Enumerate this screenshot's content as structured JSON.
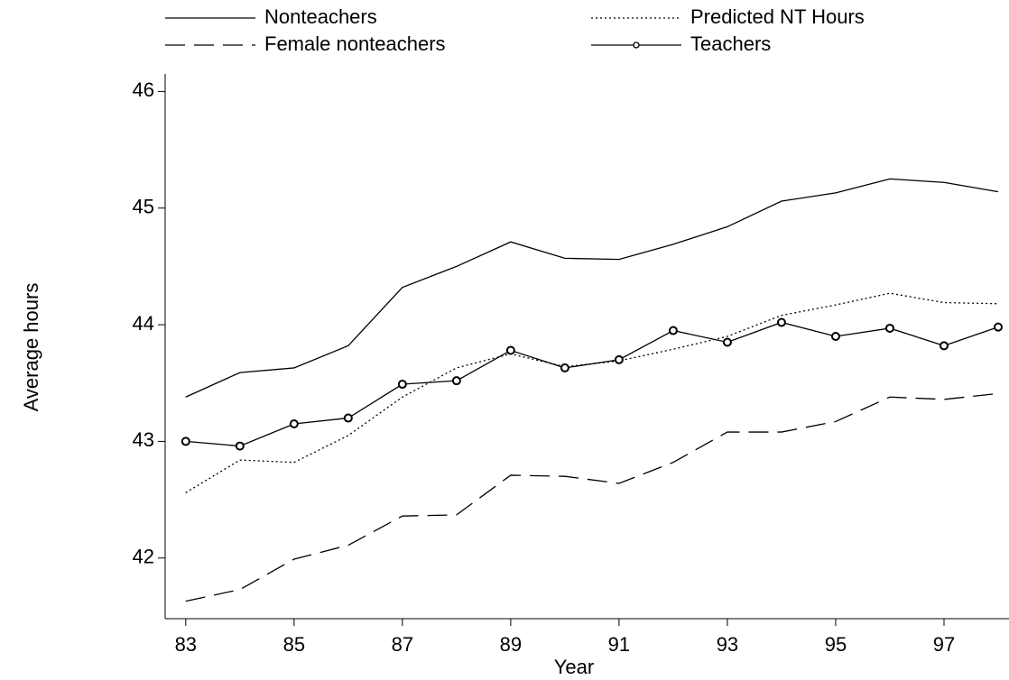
{
  "chart_data": {
    "type": "line",
    "x": [
      83,
      84,
      85,
      86,
      87,
      88,
      89,
      90,
      91,
      92,
      93,
      94,
      95,
      96,
      97,
      98
    ],
    "series": [
      {
        "name": "Nonteachers",
        "color": "#000000",
        "style": "solid",
        "values": [
          43.38,
          43.59,
          43.63,
          43.82,
          44.32,
          44.5,
          44.71,
          44.57,
          44.56,
          44.69,
          44.84,
          45.06,
          45.13,
          45.25,
          45.22,
          45.14
        ]
      },
      {
        "name": "Predicted NT Hours",
        "color": "#000000",
        "style": "dotted",
        "values": [
          42.56,
          42.84,
          42.82,
          43.05,
          43.38,
          43.63,
          43.75,
          43.64,
          43.69,
          43.79,
          43.9,
          44.08,
          44.17,
          44.27,
          44.19,
          44.18
        ]
      },
      {
        "name": "Female nonteachers",
        "color": "#000000",
        "style": "dashed",
        "values": [
          41.63,
          41.73,
          41.99,
          42.11,
          42.36,
          42.37,
          42.71,
          42.7,
          42.64,
          42.82,
          43.08,
          43.08,
          43.17,
          43.38,
          43.36,
          43.41
        ]
      },
      {
        "name": "Teachers",
        "color": "#000000",
        "style": "solid",
        "marker": "circle",
        "values": [
          43.0,
          42.96,
          43.15,
          43.2,
          43.49,
          43.52,
          43.78,
          43.63,
          43.7,
          43.95,
          43.85,
          44.02,
          43.9,
          43.97,
          43.82,
          43.98
        ]
      }
    ],
    "xlabel": "Year",
    "ylabel": "Average hours",
    "xlim": [
      82.62,
      98.2
    ],
    "ylim": [
      41.48,
      46.15
    ],
    "xticks": [
      83,
      85,
      87,
      89,
      91,
      93,
      95,
      97
    ],
    "yticks": [
      42,
      43,
      44,
      45,
      46
    ],
    "grid": false,
    "legend": "top"
  }
}
